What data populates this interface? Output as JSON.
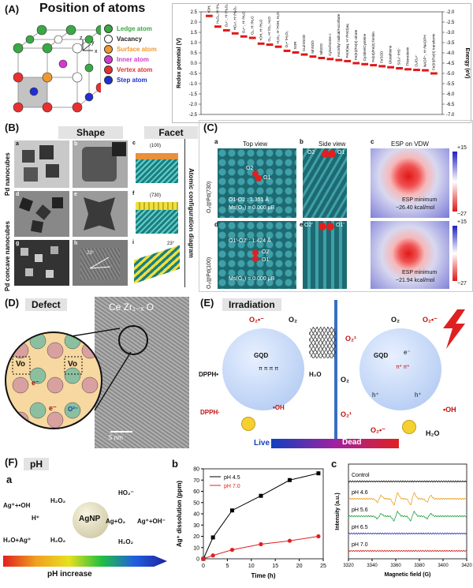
{
  "panelA": {
    "label": "(A)",
    "title": "Position of atoms",
    "legend": [
      {
        "name": "Ledge atom",
        "color": "#3aa845"
      },
      {
        "name": "Vacancy",
        "color": "#ffffff"
      },
      {
        "name": "Surface atom",
        "color": "#f09830"
      },
      {
        "name": "Inner atom",
        "color": "#d03ad0"
      },
      {
        "name": "Vertex atom",
        "color": "#e83030"
      },
      {
        "name": "Step atom",
        "color": "#2030d0"
      }
    ],
    "axis_labels": {
      "x": "x",
      "y": "y",
      "z": "z"
    },
    "redox_chart": {
      "ylabel_left": "Redox potential (V)",
      "ylabel_right": "Energy (eV)",
      "left_ticks": [
        "2.5",
        "2.0",
        "1.5",
        "1.0",
        "0.5",
        "0.0",
        "-0.5",
        "-1.0",
        "-1.5",
        "-2.0",
        "-2.5"
      ],
      "right_ticks": [
        "-2.0",
        "-2.5",
        "-3.0",
        "-3.5",
        "-4.0",
        "-4.5",
        "-5.0",
        "-5.5",
        "-6.0",
        "-6.5",
        "-7.0"
      ],
      "couples": [
        {
          "label": "•OH, H⁺/H₂O",
          "value": 2.3
        },
        {
          "label": "H₂O₂, H⁺/H₂O",
          "value": 1.78
        },
        {
          "label": "O₂•⁻, H⁺/H₂O₂",
          "value": 1.6
        },
        {
          "label": "HO₂•, H⁺/H₂O₂",
          "value": 1.45
        },
        {
          "label": "O₂•⁻, H⁺/H₂O",
          "value": 1.3
        },
        {
          "label": "O₂, H⁺/H₂O",
          "value": 1.23
        },
        {
          "label": "•OH, H⁺/H₂O",
          "value": 0.95
        },
        {
          "label": "O₃, H⁺/O₂, H₂O",
          "value": 0.9
        },
        {
          "label": "H₂O₂, H⁺/•OH, H₂O",
          "value": 0.8
        },
        {
          "label": "O₂•⁻/H₂O₂",
          "value": 0.6
        },
        {
          "label": "SOR",
          "value": 0.52
        },
        {
          "label": "CuZnSOD",
          "value": 0.42
        },
        {
          "label": "MnSOD",
          "value": 0.32
        },
        {
          "label": "NiSOD",
          "value": 0.25
        },
        {
          "label": "Cytochrome c",
          "value": 0.2
        },
        {
          "label": "Ascorbyl radical/Ascorbate",
          "value": 0.15
        },
        {
          "label": "Fe(III)aq, H⁺/Fe(II)aq",
          "value": 0.1
        },
        {
          "label": "Fe(III)/Fe(II) citrate",
          "value": 0.0
        },
        {
          "label": "Cystine/Cysteine",
          "value": -0.05
        },
        {
          "label": "Fe(III)/Fe(II) ferritin",
          "value": -0.1
        },
        {
          "label": "FeSOD",
          "value": -0.15
        },
        {
          "label": "Glutathione",
          "value": -0.2
        },
        {
          "label": "SO₄²⁻/HS⁻",
          "value": -0.25
        },
        {
          "label": "Thioredoxin",
          "value": -0.3
        },
        {
          "label": "O₂/O₂•⁻",
          "value": -0.33
        },
        {
          "label": "NADP⁺, H⁺/NADPH",
          "value": -0.35
        },
        {
          "label": "Fe(III)/Fe(II) transferrin",
          "value": -0.5
        }
      ]
    }
  },
  "panelB": {
    "label": "(B)",
    "shape_header": "Shape",
    "facet_header": "Facet",
    "row1_label": "Pd nanocubes",
    "row2_label": "Pd concave nanocubes",
    "side_label": "Atomic configuration diagram",
    "sub": [
      "a",
      "b",
      "c",
      "d",
      "e",
      "f",
      "g",
      "h",
      "i"
    ],
    "facet_c": "(100)",
    "facet_f": "(730)",
    "angle": "23°"
  },
  "panelC": {
    "label": "(C)",
    "sub": [
      "a",
      "b",
      "c",
      "d",
      "e",
      "f"
    ],
    "top_view": "Top view",
    "side_view": "Side view",
    "esp_title": "ESP on VDW",
    "row1_side": "O₂@Pd(730)",
    "row2_side": "O₂@Pd(100)",
    "row1_bond": "O1-O2 : 1.351 Å",
    "row1_ms": "Ms(O₂) = 0.000 μB",
    "row2_bond": "O1'-O2' : 1.424 Å",
    "row2_ms": "Ms(O₂) = 0.000 μB",
    "o1": "O1",
    "o2": "O2",
    "o1p": "O1'",
    "o2p": "O2'",
    "esp1_label": "ESP minimum",
    "esp1_val": "−26.40 kcal/mol",
    "esp2_label": "ESP minimum",
    "esp2_val": "−21.94 kcal/mol",
    "scale_top": "+15",
    "scale_bottom": "−27"
  },
  "panelD": {
    "label": "(D)",
    "tag": "Defect",
    "formula": "Ce Zr₁₋ₓ O",
    "scale": "5 nm",
    "vo1": "Vo",
    "vo2": "Vo",
    "e1": "e⁻",
    "e2": "e⁻",
    "o2": "O²⁻",
    "ce": "Ce"
  },
  "panelE": {
    "label": "(E)",
    "tag": "Irradiation",
    "left": {
      "o2m": "O₂•⁻",
      "o2": "O₂",
      "dpph": "DPPH•",
      "dpphh": "DPPH·",
      "oh": "•OH",
      "h2o": "H₂O",
      "gqd": "GQD",
      "pi": "π π π π"
    },
    "right": {
      "o2": "O₂",
      "o2m": "O₂•⁻",
      "o21": "O₂¹",
      "o2b": "O₂",
      "gqd": "GQD",
      "em": "e⁻",
      "pistar": "π* π*",
      "hplus": "h⁺",
      "oh": "•OH",
      "o21b": "O₂¹",
      "o2mb": "O₂•⁻",
      "h2o": "H₂O"
    },
    "live": "Live",
    "dead": "Dead"
  },
  "panelF": {
    "label": "(F)",
    "tag": "pH",
    "sub_a": "a",
    "sub_b": "b",
    "sub_c": "c",
    "scheme": {
      "agoh": "Ag⁺+•OH",
      "h2o2_1": "H₂O₂",
      "hplus": "H⁺",
      "h2oag": "H₂O+Ag⁺",
      "h2o2_2": "H₂O₂",
      "agnp": "AgNP",
      "ho2": "HO₂⁻",
      "ago2": "Ag+O₂",
      "agoh2": "Ag⁺+OH⁻",
      "h2o2_3": "H₂O₂"
    },
    "ph_bar": "pH increase"
  },
  "chart_data": [
    {
      "type": "line",
      "xlabel": "Time (h)",
      "ylabel": "Ag⁺ dissolution (ppm)",
      "xlim": [
        0,
        25
      ],
      "ylim": [
        0,
        80
      ],
      "xticks": [
        0,
        5,
        10,
        15,
        20,
        25
      ],
      "yticks": [
        0,
        10,
        20,
        30,
        40,
        50,
        60,
        70,
        80
      ],
      "series": [
        {
          "name": "pH 4.5",
          "color": "#000000",
          "x": [
            0,
            2,
            6,
            12,
            18,
            24
          ],
          "y": [
            0,
            19,
            43,
            56,
            70,
            76
          ]
        },
        {
          "name": "pH 7.0",
          "color": "#e02020",
          "x": [
            0,
            2,
            6,
            12,
            18,
            24
          ],
          "y": [
            0,
            3,
            8,
            13,
            16,
            20
          ]
        }
      ],
      "legend": "top-left"
    },
    {
      "type": "line",
      "xlabel": "Magnetic field (G)",
      "ylabel": "Intensity (a.u.)",
      "xlim": [
        3320,
        3420
      ],
      "xticks": [
        3320,
        3340,
        3360,
        3380,
        3400,
        3420
      ],
      "series": [
        {
          "name": "Control",
          "color": "#000000"
        },
        {
          "name": "pH 4.6",
          "color": "#e8a020"
        },
        {
          "name": "pH 5.6",
          "color": "#20a040"
        },
        {
          "name": "pH 6.5",
          "color": "#2030c0"
        },
        {
          "name": "pH 7.0",
          "color": "#d02020"
        }
      ]
    }
  ]
}
